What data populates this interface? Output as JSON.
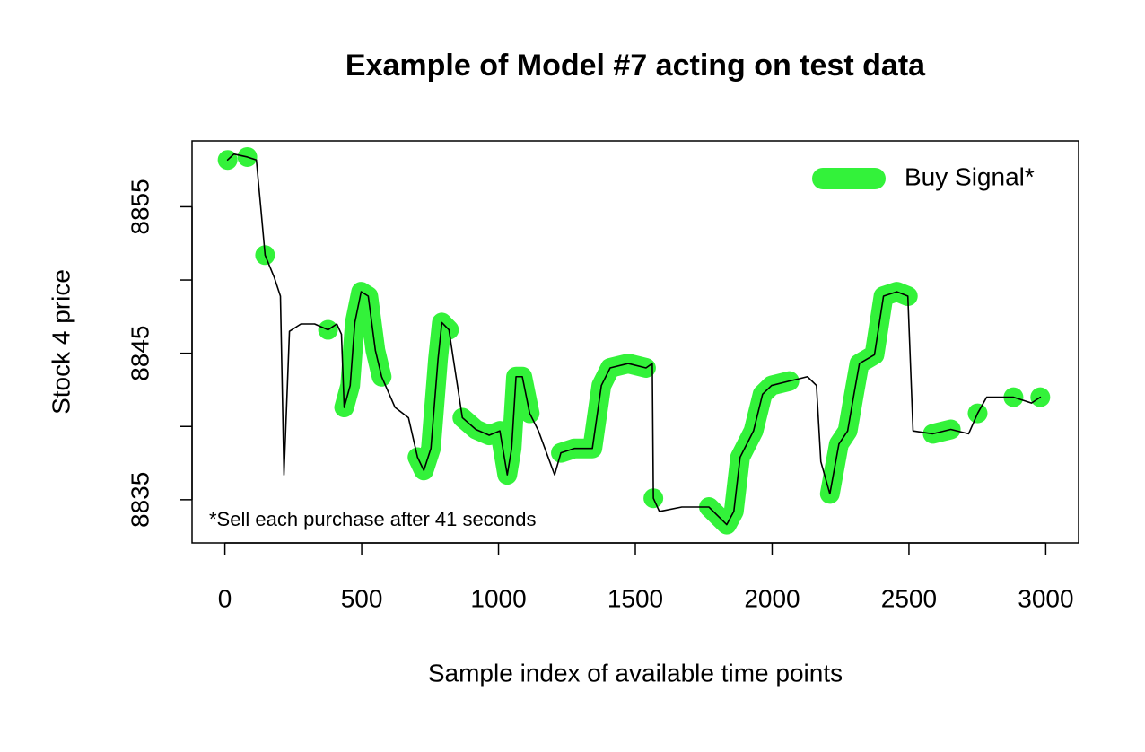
{
  "chart_data": {
    "type": "line",
    "title": "Example of Model #7 acting on test data",
    "x_label": "Sample index of available time points",
    "y_label": "Stock 4 price",
    "annotation": "*Sell each purchase after 41 seconds",
    "x": [
      10,
      33,
      82,
      115,
      131,
      147,
      180,
      203,
      216,
      236,
      278,
      328,
      377,
      409,
      426,
      436,
      458,
      475,
      498,
      524,
      550,
      573,
      622,
      671,
      704,
      727,
      753,
      779,
      793,
      819,
      835,
      868,
      917,
      966,
      1005,
      1032,
      1048,
      1064,
      1087,
      1114,
      1146,
      1205,
      1228,
      1277,
      1343,
      1376,
      1408,
      1474,
      1539,
      1562,
      1566,
      1588,
      1670,
      1769,
      1834,
      1860,
      1883,
      1932,
      1965,
      1998,
      2063,
      2129,
      2162,
      2178,
      2211,
      2244,
      2276,
      2299,
      2319,
      2374,
      2407,
      2456,
      2496,
      2515,
      2587,
      2653,
      2718,
      2751,
      2784,
      2882,
      2948,
      2980
    ],
    "series": [
      {
        "name": "Buy Signal*",
        "color": "#33f23a",
        "values": [
          8858.2,
          null,
          8858.4,
          null,
          null,
          8851.7,
          null,
          null,
          null,
          null,
          null,
          null,
          8846.6,
          null,
          null,
          8841.3,
          8842.8,
          8847.1,
          8849.2,
          8848.9,
          8845.2,
          8843.4,
          null,
          null,
          8837.9,
          8837,
          8838.5,
          8844.6,
          8847.1,
          8846.6,
          null,
          8840.6,
          8839.8,
          8839.4,
          8839.7,
          8836.7,
          8838.5,
          8843.4,
          8843.4,
          8840.9,
          null,
          null,
          8838.2,
          8838.5,
          8838.5,
          8842.8,
          8844,
          8844.3,
          8844,
          null,
          8835.1,
          null,
          null,
          8834.5,
          8833.3,
          8834.2,
          8837.9,
          8839.7,
          8842.2,
          8842.8,
          8843.1,
          null,
          null,
          null,
          8835.4,
          8838.8,
          8839.7,
          8842.2,
          8844.3,
          8844.9,
          8848.9,
          8849.2,
          8848.9,
          null,
          8839.5,
          8839.8,
          null,
          8840.9,
          null,
          8842,
          null,
          8842
        ]
      },
      {
        "color": "#000000",
        "values": [
          8858.2,
          8858.6,
          8858.4,
          8858.2,
          8855,
          8851.7,
          8850.2,
          8848.9,
          8836.7,
          8846.5,
          8847,
          8847,
          8846.6,
          8847,
          8846.3,
          8841.3,
          8842.8,
          8847.1,
          8849.2,
          8848.9,
          8845.2,
          8843.4,
          8841.3,
          8840.6,
          8837.9,
          8837,
          8838.5,
          8844.6,
          8847.1,
          8846.6,
          8844.6,
          8840.6,
          8839.8,
          8839.4,
          8839.7,
          8836.7,
          8838.5,
          8843.4,
          8843.4,
          8840.9,
          8839.7,
          8836.7,
          8838.2,
          8838.5,
          8838.5,
          8842.8,
          8844,
          8844.3,
          8844,
          8844.3,
          8835.1,
          8834.2,
          8834.5,
          8834.5,
          8833.3,
          8834.2,
          8837.9,
          8839.7,
          8842.2,
          8842.8,
          8843.1,
          8843.4,
          8842.8,
          8837.6,
          8835.4,
          8838.8,
          8839.7,
          8842.2,
          8844.3,
          8844.9,
          8848.9,
          8849.2,
          8848.9,
          8839.7,
          8839.5,
          8839.8,
          8839.5,
          8840.9,
          8842,
          8842,
          8841.6,
          8842
        ]
      }
    ],
    "xlim": [
      -120,
      3120
    ],
    "xticks": [
      0,
      500,
      1000,
      1500,
      2000,
      2500,
      3000
    ],
    "ylim": [
      8832.05,
      8859.5
    ],
    "yticks": [
      8835,
      {
        "value": 8840,
        "label": null
      },
      8845,
      {
        "value": 8850,
        "label": null
      },
      8855
    ],
    "grid": false,
    "legend": "top-right"
  }
}
